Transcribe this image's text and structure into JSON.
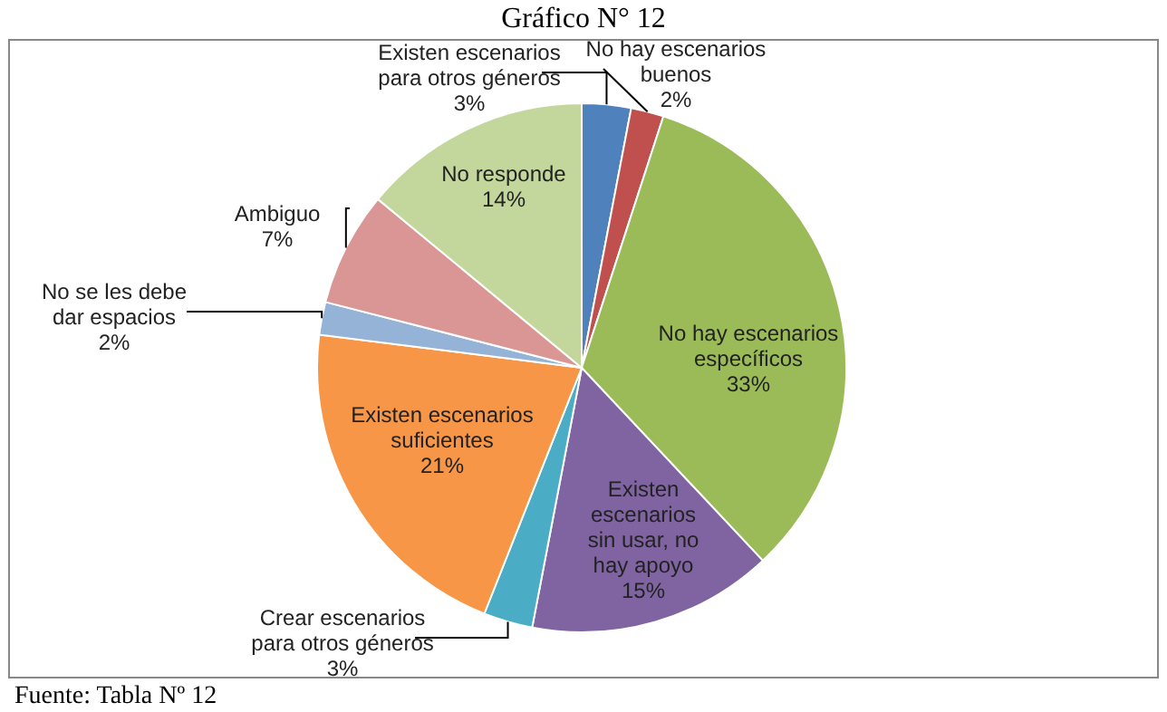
{
  "chart_data": {
    "type": "pie",
    "title": "Gráfico N° 12",
    "categories": [
      "Existen escenarios para otros géneros",
      "No hay escenarios buenos",
      "No hay escenarios específicos",
      "Existen escenarios sin usar, no hay apoyo",
      "Crear escenarios para otros géneros",
      "Existen escenarios suficientes",
      "No se les debe dar espacios",
      "Ambiguo",
      "No responde"
    ],
    "values": [
      3,
      2,
      33,
      15,
      3,
      21,
      2,
      7,
      14
    ],
    "value_labels": [
      "3%",
      "2%",
      "33%",
      "15%",
      "3%",
      "21%",
      "2%",
      "7%",
      "14%"
    ],
    "colors": [
      "#4f81bd",
      "#c0504d",
      "#9bbb59",
      "#8064a2",
      "#4bacc6",
      "#f79646",
      "#95b3d7",
      "#d99694",
      "#c3d69b"
    ],
    "annotations": [
      "Fuente: Tabla Nº 12"
    ]
  }
}
